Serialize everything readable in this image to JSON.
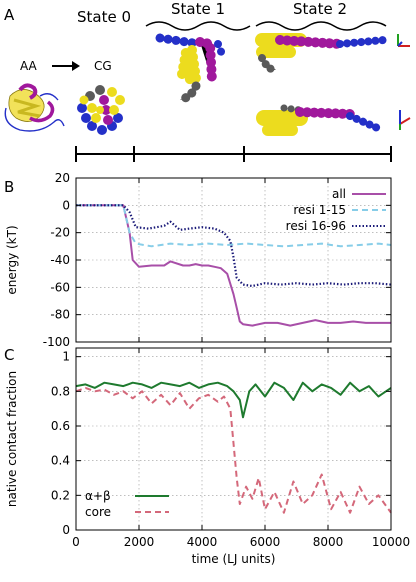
{
  "panel_a": {
    "letter": "A",
    "states": [
      "State 0",
      "State 1",
      "State 2"
    ],
    "aa_label": "AA",
    "cg_label": "CG",
    "colors": {
      "magenta": "#a0189c",
      "yellow": "#ecdc1e",
      "blue": "#2430c8",
      "gray": "#5a5a5a",
      "ribbon_yellow": "#f2e25a"
    },
    "icons": [
      "protein-ribbon-icon",
      "cg-sphere-cluster-icon",
      "axis-triad-icon"
    ]
  },
  "chart_data": [
    {
      "panel": "B",
      "type": "line",
      "xlabel": "",
      "ylabel": "energy (kT)",
      "xlim": [
        0,
        10000
      ],
      "ylim": [
        -100,
        20
      ],
      "xticks": [
        0,
        2000,
        4000,
        6000,
        8000,
        10000
      ],
      "yticks": [
        -100,
        -80,
        -60,
        -40,
        -20,
        0,
        20
      ],
      "ytick_labels": [
        "-100",
        "-80",
        "-60",
        "-40",
        "-20",
        "0",
        "20"
      ],
      "show_xtick_labels": false,
      "grid": true,
      "legend_position": "top-right",
      "series": [
        {
          "name": "all",
          "color": "#a84fa8",
          "style": "solid",
          "x": [
            0,
            1500,
            1700,
            1800,
            2000,
            2400,
            2800,
            3000,
            3400,
            3600,
            3800,
            4000,
            4200,
            4400,
            4600,
            4800,
            5000,
            5100,
            5200,
            5300,
            5600,
            6000,
            6400,
            6800,
            7200,
            7600,
            8000,
            8400,
            8800,
            9200,
            9600,
            10000
          ],
          "y": [
            0,
            0,
            -20,
            -40,
            -45,
            -44,
            -44,
            -41,
            -44,
            -44,
            -43,
            -44,
            -44,
            -45,
            -46,
            -50,
            -65,
            -75,
            -85,
            -87,
            -88,
            -86,
            -86,
            -88,
            -86,
            -84,
            -86,
            -86,
            -85,
            -86,
            -86,
            -86
          ]
        },
        {
          "name": "resi 1-15",
          "color": "#87cde8",
          "style": "dashed",
          "x": [
            0,
            1500,
            1700,
            1900,
            2400,
            3000,
            3600,
            4200,
            4800,
            5400,
            6000,
            6600,
            7200,
            7800,
            8400,
            9000,
            9600,
            10000
          ],
          "y": [
            0,
            0,
            -20,
            -28,
            -30,
            -28,
            -29,
            -28,
            -29,
            -28,
            -29,
            -30,
            -29,
            -28,
            -30,
            -29,
            -28,
            -29
          ]
        },
        {
          "name": "resi 16-96",
          "color": "#1a1a78",
          "style": "dotted",
          "x": [
            0,
            1500,
            1700,
            1900,
            2300,
            2800,
            3000,
            3300,
            3600,
            4000,
            4400,
            4700,
            4900,
            5000,
            5100,
            5300,
            5600,
            6000,
            6500,
            7000,
            7500,
            8000,
            8500,
            9000,
            9500,
            10000
          ],
          "y": [
            0,
            0,
            -5,
            -16,
            -17,
            -15,
            -12,
            -18,
            -17,
            -16,
            -17,
            -20,
            -26,
            -38,
            -53,
            -58,
            -59,
            -57,
            -58,
            -57,
            -58,
            -57,
            -58,
            -57,
            -57,
            -58
          ]
        }
      ]
    },
    {
      "panel": "C",
      "type": "line",
      "xlabel": "time (LJ units)",
      "ylabel": "native contact fraction",
      "xlim": [
        0,
        10000
      ],
      "ylim": [
        0,
        1.05
      ],
      "xticks": [
        0,
        2000,
        4000,
        6000,
        8000,
        10000
      ],
      "xtick_labels": [
        "0",
        "2000",
        "4000",
        "6000",
        "8000",
        "10000"
      ],
      "yticks": [
        0,
        0.2,
        0.4,
        0.6,
        0.8,
        1
      ],
      "ytick_labels": [
        "0",
        "0.2",
        "0.4",
        "0.6",
        "0.8",
        "1"
      ],
      "grid": true,
      "legend_position": "bottom-left",
      "series": [
        {
          "name": "α+β",
          "color": "#1e7a2e",
          "style": "solid",
          "x": [
            0,
            300,
            600,
            900,
            1200,
            1500,
            1800,
            2100,
            2400,
            2700,
            3000,
            3300,
            3600,
            3900,
            4200,
            4500,
            4800,
            5000,
            5200,
            5300,
            5500,
            5700,
            6000,
            6300,
            6600,
            6900,
            7200,
            7500,
            7800,
            8100,
            8400,
            8700,
            9000,
            9300,
            9600,
            10000
          ],
          "y": [
            0.83,
            0.84,
            0.82,
            0.85,
            0.84,
            0.83,
            0.85,
            0.84,
            0.82,
            0.85,
            0.84,
            0.83,
            0.85,
            0.82,
            0.84,
            0.85,
            0.83,
            0.8,
            0.75,
            0.65,
            0.8,
            0.84,
            0.77,
            0.85,
            0.82,
            0.75,
            0.85,
            0.8,
            0.84,
            0.82,
            0.78,
            0.85,
            0.8,
            0.83,
            0.77,
            0.82
          ]
        },
        {
          "name": "core",
          "color": "#d4687a",
          "style": "dashed",
          "x": [
            0,
            300,
            600,
            900,
            1200,
            1500,
            1800,
            2100,
            2400,
            2700,
            3000,
            3300,
            3600,
            3900,
            4200,
            4500,
            4700,
            4900,
            5000,
            5100,
            5200,
            5400,
            5600,
            5800,
            6000,
            6300,
            6600,
            6900,
            7200,
            7500,
            7800,
            8100,
            8400,
            8700,
            9000,
            9300,
            9600,
            10000
          ],
          "y": [
            0.8,
            0.82,
            0.8,
            0.81,
            0.78,
            0.8,
            0.76,
            0.8,
            0.73,
            0.78,
            0.72,
            0.79,
            0.7,
            0.76,
            0.78,
            0.74,
            0.77,
            0.7,
            0.5,
            0.3,
            0.15,
            0.25,
            0.18,
            0.3,
            0.12,
            0.22,
            0.1,
            0.28,
            0.15,
            0.2,
            0.32,
            0.12,
            0.22,
            0.1,
            0.25,
            0.15,
            0.2,
            0.1
          ]
        }
      ]
    }
  ]
}
